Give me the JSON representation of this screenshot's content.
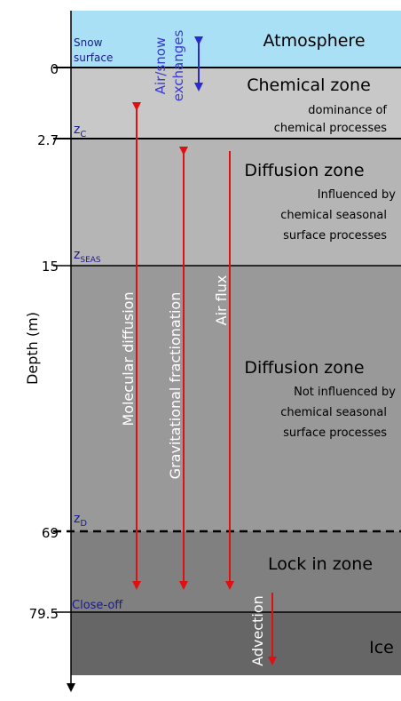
{
  "colors": {
    "atmosphere": "#aae0f5",
    "chemical_zone": "#c8c8c8",
    "diffusion_upper": "#b5b5b5",
    "diffusion_lower": "#999999",
    "lock_in": "#808080",
    "ice": "#666666",
    "arrow_red": "#e01010",
    "arrow_blue": "#2a2ad0",
    "depth_label_blue": "#1a1a8c"
  },
  "axis": {
    "label": "Depth (m)",
    "ticks": [
      "0",
      "2.7",
      "15",
      "69",
      "79.5"
    ]
  },
  "left_labels": {
    "snow_line1": "Snow",
    "snow_line2": "surface",
    "z_c": "z",
    "z_c_sub": "C",
    "z_seas": "z",
    "z_seas_sub": "SEAS",
    "z_d": "z",
    "z_d_sub": "D",
    "close_off": "Close-off"
  },
  "zones": {
    "atmosphere": "Atmosphere",
    "chemical": {
      "title": "Chemical zone",
      "desc1": "dominance of",
      "desc2": "chemical processes"
    },
    "diffusion_seasonal": {
      "title": "Diffusion zone",
      "desc1": "Influenced by",
      "desc2": "chemical seasonal",
      "desc3": "surface processes"
    },
    "diffusion_deep": {
      "title": "Diffusion zone",
      "desc1": "Not influenced by",
      "desc2": "chemical seasonal",
      "desc3": "surface processes"
    },
    "lock_in": "Lock in zone",
    "ice": "Ice"
  },
  "processes": {
    "exchange_line1": "Air/snow",
    "exchange_line2": "exchanges",
    "molecular": "Molecular diffusion",
    "gravitational": "Gravitational fractionation",
    "air_flux": "Air flux",
    "advection": "Advection"
  }
}
